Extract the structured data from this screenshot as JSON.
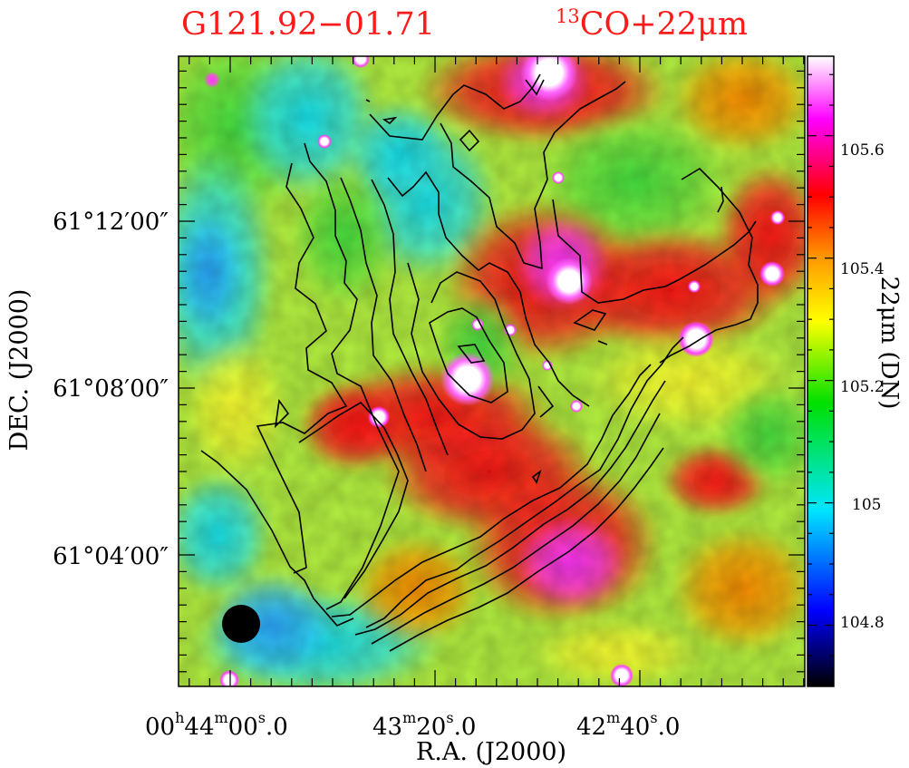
{
  "chart_data": {
    "type": "heatmap",
    "title_left": "G121.92−01.71",
    "title_right_sup": "13",
    "title_right": "CO+22μm",
    "xlabel": "R.A. (J2000)",
    "ylabel": "DEC. (J2000)",
    "x_ticks": [
      {
        "h": "00",
        "hsup": "h",
        "m": "44",
        "msup": "m",
        "s": "00",
        "ssup": "s",
        "frac": ".0"
      },
      {
        "m": "43",
        "msup": "m",
        "s": "20",
        "ssup": "s",
        "frac": ".0"
      },
      {
        "m": "42",
        "msup": "m",
        "s": "40",
        "ssup": "s",
        "frac": ".0"
      }
    ],
    "y_ticks": [
      "61°12′00″",
      "61°08′00″",
      "61°04′00″"
    ],
    "colorbar": {
      "label": "22μm (DN)",
      "ticks": [
        "105.6",
        "105.4",
        "105.2",
        "105",
        "104.8"
      ],
      "tick_values": [
        105.6,
        105.4,
        105.2,
        105.0,
        104.8
      ],
      "range": [
        104.7,
        105.73
      ]
    },
    "colormap": [
      "#000000",
      "#0000ff",
      "#00e5ff",
      "#00e000",
      "#ffff00",
      "#ff9900",
      "#ff0000",
      "#ff00ff",
      "#ffffff"
    ],
    "contour_color": "#000000",
    "beam_color": "#000000",
    "title_color": "#ff1a1a"
  }
}
